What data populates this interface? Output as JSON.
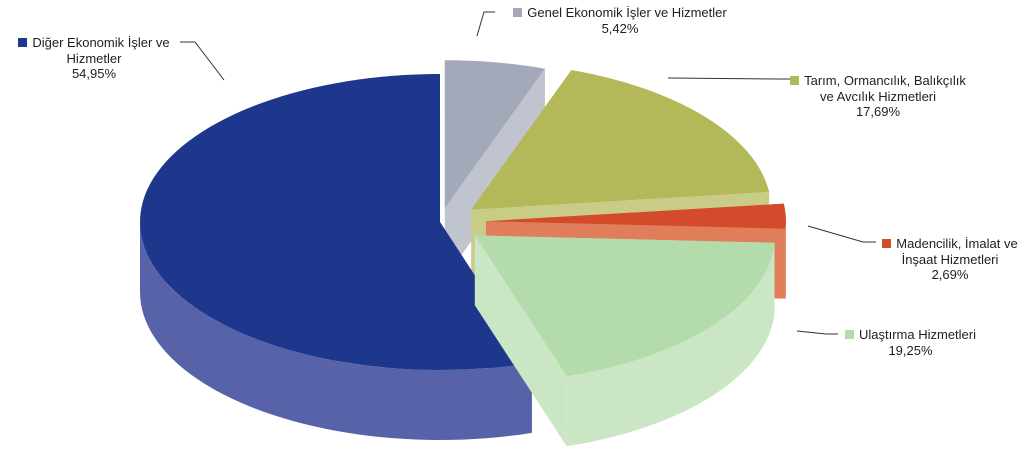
{
  "chart_data": {
    "type": "pie",
    "title": "",
    "slices": [
      {
        "name": "Genel Ekonomik İşler  ve Hizmetler",
        "value": 5.42,
        "label": "5,42%",
        "color": "#a3a9b8",
        "side_color": "#c0c4cf"
      },
      {
        "name": "Tarım, Ormancılık, Balıkçılık ve Avcılık Hizmetleri",
        "value": 17.69,
        "label": "17,69%",
        "color": "#b3b858",
        "side_color": "#c9cc87"
      },
      {
        "name": "Madencilik, İmalat ve İnşaat Hizmetleri",
        "value": 2.69,
        "label": "2,69%",
        "color": "#d34b2a",
        "side_color": "#e07e5c"
      },
      {
        "name": "Ulaştırma Hizmetleri",
        "value": 19.25,
        "label": "19,25%",
        "color": "#b4dbac",
        "side_color": "#cbe6c4"
      },
      {
        "name": "Diğer Ekonomik İşler ve Hizmetler",
        "value": 54.95,
        "label": "54,95%",
        "color": "#1c378b",
        "side_color": "#5862a8"
      }
    ],
    "legend": "labels-with-leader-lines"
  }
}
